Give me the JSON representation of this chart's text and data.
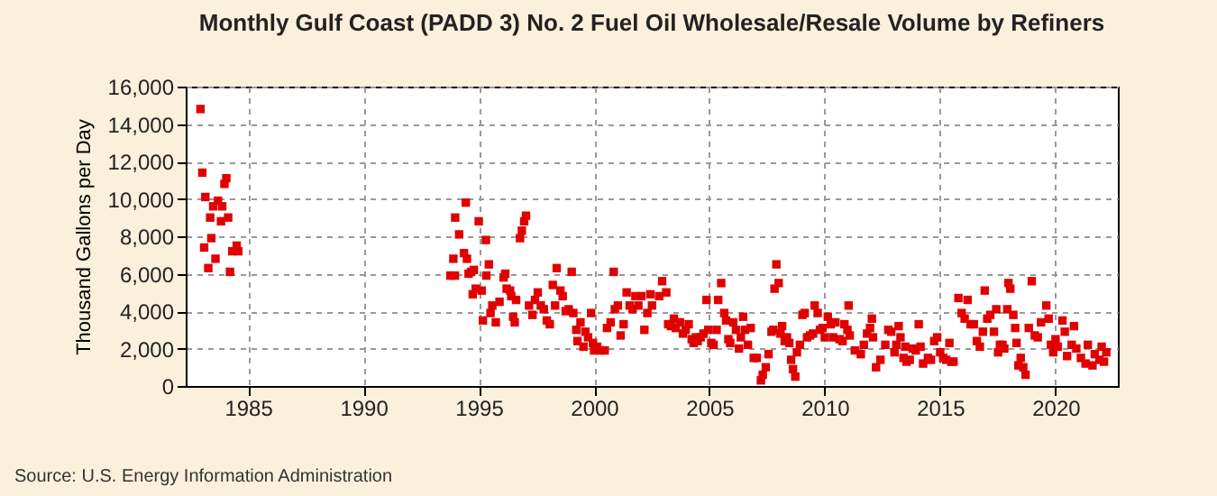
{
  "chart_data": {
    "type": "scatter",
    "title": "Monthly Gulf Coast (PADD 3) No. 2 Fuel Oil Wholesale/Resale Volume by Refiners",
    "ylabel": "Thousand Gallons per Day",
    "annotations": [
      "Source: U.S. Energy Information Administration"
    ],
    "marker": "square",
    "grid": true,
    "xlim": [
      1982.3,
      2022.7
    ],
    "xticks": [
      1985,
      1990,
      1995,
      2000,
      2005,
      2010,
      2015,
      2020
    ],
    "ylim": [
      0,
      16000
    ],
    "yticks": [
      {
        "value": 0,
        "label": "0"
      },
      {
        "value": 2000,
        "label": "2,000"
      },
      {
        "value": 4000,
        "label": "4,000"
      },
      {
        "value": 6000,
        "label": "6,000"
      },
      {
        "value": 8000,
        "label": "8,000"
      },
      {
        "value": 10000,
        "label": "10,000"
      },
      {
        "value": 12000,
        "label": "12,000"
      },
      {
        "value": 14000,
        "label": "14,000"
      },
      {
        "value": 16000,
        "label": "16,000"
      }
    ],
    "series": [
      {
        "color": "#e00000",
        "x": [
          1982.94,
          1983.02,
          1983.1,
          1983.15,
          1983.28,
          1983.36,
          1983.41,
          1983.49,
          1983.59,
          1983.7,
          1983.83,
          1983.88,
          1983.98,
          1984.06,
          1984.14,
          1984.22,
          1984.32,
          1984.51,
          1984.58,
          1993.77,
          1993.9,
          1993.97,
          1993.98,
          1994.15,
          1994.36,
          1994.44,
          1994.49,
          1994.56,
          1994.67,
          1994.74,
          1994.79,
          1994.87,
          1995.0,
          1995.13,
          1995.18,
          1995.31,
          1995.33,
          1995.44,
          1995.51,
          1995.59,
          1995.74,
          1995.9,
          1996.08,
          1996.15,
          1996.21,
          1996.36,
          1996.41,
          1996.49,
          1996.56,
          1996.62,
          1996.79,
          1996.87,
          1996.97,
          1997.05,
          1997.18,
          1997.33,
          1997.44,
          1997.56,
          1997.69,
          1997.82,
          1997.95,
          1998.08,
          1998.21,
          1998.31,
          1998.38,
          1998.54,
          1998.64,
          1998.77,
          1998.9,
          1999.03,
          1999.1,
          1999.23,
          1999.28,
          1999.41,
          1999.54,
          1999.62,
          1999.74,
          1999.87,
          1999.95,
          2000.0,
          2000.13,
          2000.26,
          2000.46,
          2000.56,
          2000.72,
          2000.85,
          2000.9,
          2001.03,
          2001.15,
          2001.28,
          2001.41,
          2001.54,
          2001.67,
          2001.79,
          2001.92,
          2002.05,
          2002.18,
          2002.31,
          2002.44,
          2002.51,
          2002.82,
          2002.95,
          2003.13,
          2003.21,
          2003.33,
          2003.46,
          2003.54,
          2003.72,
          2003.85,
          2003.97,
          2004.1,
          2004.23,
          2004.31,
          2004.41,
          2004.49,
          2004.62,
          2004.74,
          2004.87,
          2004.95,
          2005.08,
          2005.18,
          2005.31,
          2005.38,
          2005.51,
          2005.64,
          2005.72,
          2005.82,
          2005.9,
          2006.03,
          2006.15,
          2006.28,
          2006.36,
          2006.46,
          2006.54,
          2006.67,
          2006.79,
          2006.92,
          2007.05,
          2007.23,
          2007.31,
          2007.44,
          2007.56,
          2007.69,
          2007.77,
          2007.82,
          2007.9,
          2008.0,
          2008.08,
          2008.15,
          2008.26,
          2008.36,
          2008.46,
          2008.54,
          2008.62,
          2008.72,
          2008.79,
          2008.92,
          2009.03,
          2009.13,
          2009.23,
          2009.36,
          2009.49,
          2009.56,
          2009.69,
          2009.79,
          2009.9,
          2010.0,
          2010.13,
          2010.26,
          2010.36,
          2010.46,
          2010.64,
          2010.77,
          2010.85,
          2010.98,
          2011.03,
          2011.08,
          2011.3,
          2011.56,
          2011.69,
          2011.83,
          2011.96,
          2012.04,
          2012.09,
          2012.22,
          2012.41,
          2012.62,
          2012.75,
          2012.88,
          2013.02,
          2013.1,
          2013.2,
          2013.28,
          2013.41,
          2013.49,
          2013.54,
          2013.68,
          2013.81,
          2013.94,
          2014.07,
          2014.15,
          2014.26,
          2014.47,
          2014.6,
          2014.74,
          2014.87,
          2015.0,
          2015.13,
          2015.26,
          2015.4,
          2015.48,
          2015.58,
          2015.79,
          2015.93,
          2016.06,
          2016.19,
          2016.32,
          2016.46,
          2016.59,
          2016.72,
          2016.85,
          2016.93,
          2017.04,
          2017.17,
          2017.33,
          2017.43,
          2017.51,
          2017.59,
          2017.7,
          2017.78,
          2017.91,
          2017.96,
          2018.04,
          2018.17,
          2018.25,
          2018.31,
          2018.39,
          2018.49,
          2018.6,
          2018.7,
          2018.84,
          2018.97,
          2019.1,
          2019.23,
          2019.37,
          2019.6,
          2019.7,
          2019.8,
          2019.9,
          2020.0,
          2020.1,
          2020.3,
          2020.4,
          2020.5,
          2020.7,
          2020.8,
          2020.9,
          2021.1,
          2021.3,
          2021.4,
          2021.6,
          2021.7,
          2021.9,
          2022.0,
          2022.1,
          2022.2
        ],
        "values": [
          14800,
          11400,
          7400,
          10100,
          6300,
          9000,
          7900,
          9600,
          6800,
          9900,
          8800,
          9600,
          10800,
          11100,
          9000,
          6100,
          7200,
          7500,
          7200,
          5900,
          6800,
          5900,
          9000,
          8100,
          7100,
          9800,
          6800,
          6000,
          6100,
          4900,
          6200,
          5200,
          8800,
          5100,
          3500,
          7800,
          5900,
          6500,
          3900,
          4300,
          3400,
          4500,
          5800,
          6000,
          5200,
          5100,
          4800,
          3700,
          3400,
          4600,
          7900,
          8300,
          8800,
          9100,
          4300,
          3800,
          4600,
          5000,
          4300,
          4100,
          3500,
          3300,
          5400,
          4300,
          6300,
          5100,
          4800,
          4000,
          4100,
          6100,
          3900,
          3000,
          2400,
          3400,
          2100,
          2900,
          2600,
          3900,
          2300,
          1900,
          2100,
          1900,
          1900,
          3100,
          3400,
          6100,
          4100,
          4300,
          2700,
          3300,
          5000,
          4300,
          4100,
          4800,
          4300,
          4800,
          3000,
          3900,
          4900,
          4300,
          4800,
          5600,
          5000,
          3300,
          3200,
          3600,
          3100,
          3400,
          2800,
          3000,
          3300,
          2500,
          2300,
          2600,
          2400,
          2600,
          2800,
          4600,
          3000,
          2300,
          2200,
          3000,
          4600,
          5500,
          3900,
          3500,
          2500,
          2300,
          3400,
          3000,
          2000,
          2600,
          3700,
          3000,
          2200,
          3100,
          1500,
          1500,
          300,
          600,
          1000,
          1700,
          2900,
          3000,
          5200,
          6500,
          5500,
          2800,
          3200,
          2400,
          2600,
          2300,
          1400,
          900,
          500,
          1800,
          2200,
          3800,
          3900,
          2600,
          2700,
          2800,
          4300,
          3900,
          3000,
          3100,
          2600,
          3700,
          3300,
          2600,
          3400,
          2500,
          2400,
          3300,
          3000,
          4300,
          2700,
          1900,
          1700,
          2200,
          2800,
          3100,
          3600,
          2600,
          1000,
          1400,
          2200,
          3000,
          2900,
          1800,
          2200,
          3200,
          2600,
          1500,
          2100,
          1300,
          1400,
          2000,
          1900,
          3300,
          2100,
          1200,
          1500,
          1400,
          2400,
          2600,
          1800,
          1500,
          1400,
          2300,
          1300,
          1300,
          4700,
          3900,
          3600,
          4600,
          3300,
          3300,
          2400,
          2100,
          2900,
          5100,
          3600,
          3800,
          2900,
          4100,
          1800,
          2200,
          2200,
          2000,
          4100,
          5500,
          5200,
          3800,
          3100,
          2300,
          1100,
          1500,
          1000,
          600,
          3100,
          5600,
          2700,
          2600,
          3400,
          4300,
          3600,
          2200,
          1800,
          2500,
          2100,
          3500,
          2900,
          1600,
          2200,
          3200,
          2000,
          1500,
          1200,
          2200,
          1100,
          1700,
          1400,
          2100,
          1300,
          1800
        ]
      }
    ]
  }
}
